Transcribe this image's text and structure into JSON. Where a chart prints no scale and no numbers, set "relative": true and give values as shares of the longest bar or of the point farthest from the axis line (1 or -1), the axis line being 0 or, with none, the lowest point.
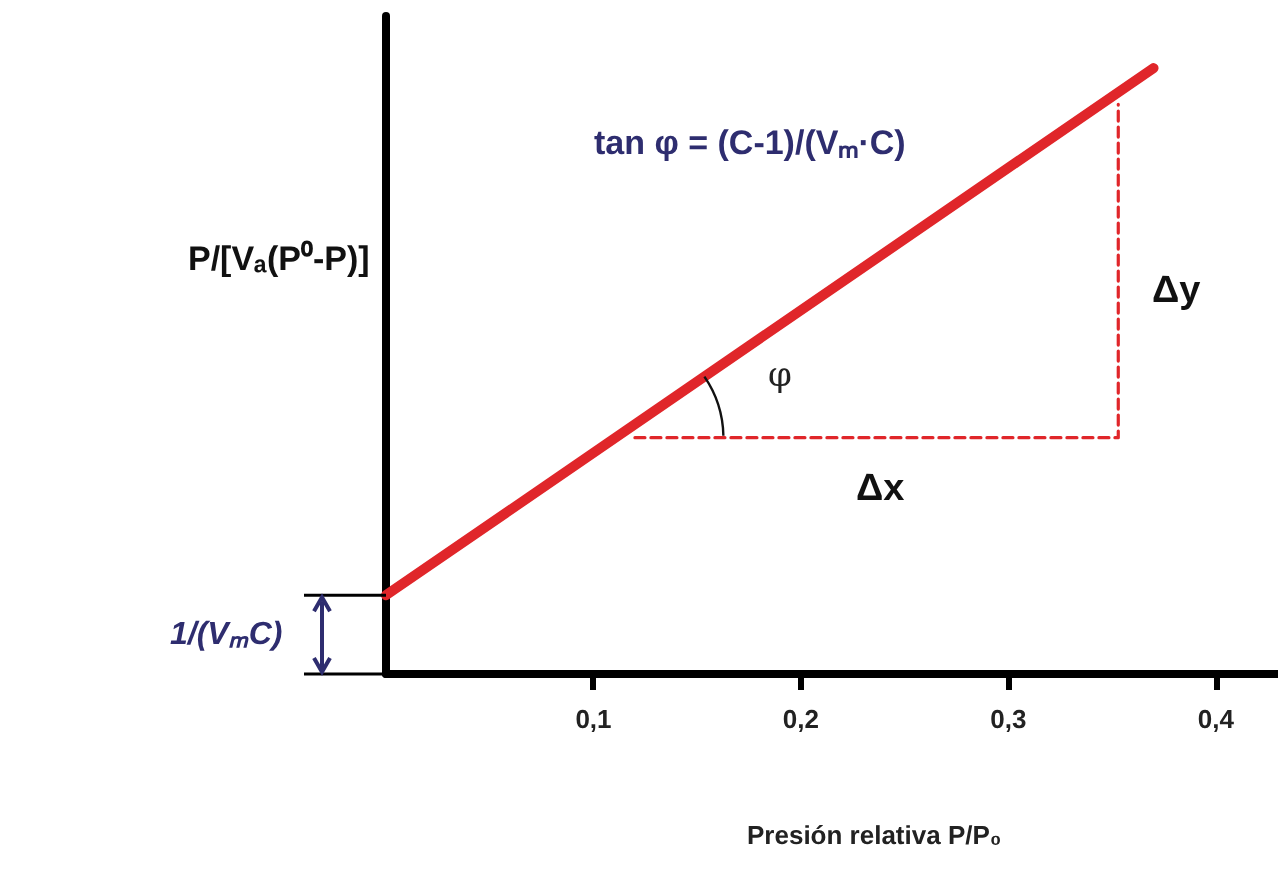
{
  "chart_data": {
    "type": "line",
    "xlabel": "Presión relativa P/P₀",
    "ylabel": "P/[Vₐ(P⁰-P)]",
    "xlim": [
      0,
      0.43
    ],
    "xticks": [
      {
        "value": 0.1,
        "label": "0,1"
      },
      {
        "value": 0.2,
        "label": "0,2"
      },
      {
        "value": 0.3,
        "label": "0,3"
      },
      {
        "value": 0.4,
        "label": "0,4"
      }
    ],
    "relative": true,
    "grid": false,
    "series": [
      {
        "color": "#e0262a",
        "x": [
          0,
          0.37
        ],
        "values": [
          0.13,
          1
        ]
      },
      {
        "color": "#e0262a",
        "x": [
          0.12,
          0.353,
          0.353
        ],
        "values": [
          0.39,
          0.39,
          0.94
        ],
        "line_style": "dashed"
      }
    ],
    "annotations": [
      "tan φ = (C-1)/(Vₘ·C)",
      "φ",
      "Δy",
      "Δx",
      {
        "text": "1/(VₘC)",
        "x": 0,
        "y": 0.13
      }
    ]
  }
}
